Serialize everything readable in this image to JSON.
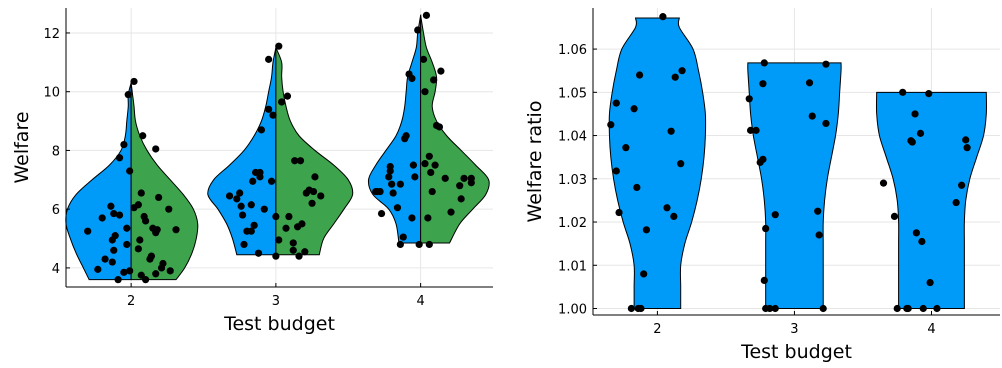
{
  "chart_data": [
    {
      "type": "violin",
      "split": true,
      "xlabel": "Test budget",
      "ylabel": "Welfare",
      "categories": [
        "2",
        "3",
        "4"
      ],
      "ylim": [
        3.35,
        12.85
      ],
      "yticks": [
        4,
        6,
        8,
        10,
        12
      ],
      "grid": true,
      "colors": {
        "left": "#009af9",
        "right": "#3da44d",
        "points": "#000000"
      },
      "violins": [
        {
          "category": "2",
          "y": [
            3.6,
            4.0,
            4.5,
            5.0,
            5.5,
            6.0,
            6.5,
            7.0,
            7.5,
            8.0,
            8.5,
            9.0,
            9.5,
            9.9,
            10.3
          ],
          "left": [
            0.29,
            0.33,
            0.38,
            0.42,
            0.45,
            0.44,
            0.38,
            0.27,
            0.15,
            0.07,
            0.04,
            0.03,
            0.02,
            0.02,
            0.0
          ],
          "right": [
            0.31,
            0.37,
            0.42,
            0.45,
            0.46,
            0.43,
            0.36,
            0.27,
            0.18,
            0.11,
            0.06,
            0.03,
            0.02,
            0.01,
            0.0
          ],
          "points": [
            [
              1.7,
              5.25
            ],
            [
              1.77,
              3.95
            ],
            [
              1.8,
              5.7
            ],
            [
              1.82,
              4.3
            ],
            [
              1.86,
              6.1
            ],
            [
              1.87,
              4.95
            ],
            [
              1.87,
              4.2
            ],
            [
              1.88,
              5.85
            ],
            [
              1.88,
              4.6
            ],
            [
              1.89,
              5.1
            ],
            [
              1.91,
              3.6
            ],
            [
              1.92,
              7.75
            ],
            [
              1.92,
              5.8
            ],
            [
              1.95,
              3.85
            ],
            [
              1.95,
              8.2
            ],
            [
              1.97,
              5.35
            ],
            [
              1.97,
              4.8
            ],
            [
              1.98,
              9.9
            ],
            [
              1.99,
              3.9
            ],
            [
              1.99,
              7.3
            ],
            [
              2.02,
              10.35
            ],
            [
              2.05,
              4.65
            ],
            [
              2.05,
              6.15
            ],
            [
              2.06,
              4.95
            ],
            [
              2.07,
              6.55
            ],
            [
              2.07,
              3.75
            ],
            [
              2.08,
              8.5
            ],
            [
              2.09,
              5.75
            ],
            [
              2.1,
              5.6
            ],
            [
              2.1,
              3.6
            ],
            [
              2.13,
              4.3
            ],
            [
              2.14,
              4.4
            ],
            [
              2.15,
              5.35
            ],
            [
              2.17,
              3.8
            ],
            [
              2.17,
              5.2
            ],
            [
              2.18,
              5.3
            ],
            [
              2.19,
              6.4
            ],
            [
              2.21,
              4.0
            ],
            [
              2.22,
              4.15
            ],
            [
              2.26,
              6.0
            ],
            [
              2.27,
              3.9
            ],
            [
              2.31,
              5.3
            ],
            [
              2.17,
              8.05
            ],
            [
              2.02,
              6.05
            ]
          ]
        },
        {
          "category": "3",
          "y": [
            4.45,
            5.0,
            5.5,
            6.0,
            6.5,
            7.0,
            7.5,
            8.0,
            8.5,
            9.0,
            9.5,
            10.0,
            10.5,
            11.0,
            11.5
          ],
          "left": [
            0.27,
            0.3,
            0.34,
            0.4,
            0.47,
            0.43,
            0.32,
            0.22,
            0.15,
            0.1,
            0.07,
            0.05,
            0.03,
            0.02,
            0.0
          ],
          "right": [
            0.3,
            0.33,
            0.4,
            0.47,
            0.53,
            0.5,
            0.4,
            0.27,
            0.16,
            0.1,
            0.07,
            0.05,
            0.04,
            0.04,
            0.0
          ],
          "points": [
            [
              2.68,
              6.45
            ],
            [
              2.73,
              6.35
            ],
            [
              2.75,
              6.55
            ],
            [
              2.76,
              6.1
            ],
            [
              2.77,
              5.8
            ],
            [
              2.78,
              4.8
            ],
            [
              2.8,
              5.25
            ],
            [
              2.83,
              5.25
            ],
            [
              2.83,
              6.15
            ],
            [
              2.84,
              6.95
            ],
            [
              2.85,
              5.45
            ],
            [
              2.86,
              7.25
            ],
            [
              2.88,
              4.5
            ],
            [
              2.89,
              7.1
            ],
            [
              2.89,
              7.25
            ],
            [
              2.9,
              8.7
            ],
            [
              2.92,
              6.0
            ],
            [
              2.95,
              9.4
            ],
            [
              2.95,
              11.1
            ],
            [
              2.97,
              6.95
            ],
            [
              2.98,
              9.2
            ],
            [
              3.0,
              4.4
            ],
            [
              3.0,
              5.75
            ],
            [
              3.02,
              11.55
            ],
            [
              3.02,
              4.95
            ],
            [
              3.04,
              9.65
            ],
            [
              3.08,
              9.85
            ],
            [
              3.09,
              5.75
            ],
            [
              3.12,
              4.6
            ],
            [
              3.12,
              4.85
            ],
            [
              3.13,
              7.65
            ],
            [
              3.15,
              5.4
            ],
            [
              3.16,
              4.4
            ],
            [
              3.17,
              7.65
            ],
            [
              3.18,
              5.5
            ],
            [
              3.2,
              4.55
            ],
            [
              3.21,
              6.55
            ],
            [
              3.23,
              6.65
            ],
            [
              3.26,
              6.6
            ],
            [
              3.27,
              7.1
            ],
            [
              3.31,
              6.45
            ],
            [
              3.07,
              5.35
            ],
            [
              3.25,
              6.2
            ]
          ]
        },
        {
          "category": "4",
          "y": [
            4.85,
            5.5,
            6.0,
            6.5,
            7.0,
            7.5,
            8.0,
            8.5,
            9.0,
            9.5,
            10.0,
            10.5,
            11.0,
            11.5,
            12.0,
            12.6
          ],
          "left": [
            0.15,
            0.17,
            0.22,
            0.33,
            0.36,
            0.31,
            0.24,
            0.17,
            0.13,
            0.11,
            0.1,
            0.09,
            0.06,
            0.03,
            0.02,
            0.0
          ],
          "right": [
            0.2,
            0.27,
            0.36,
            0.45,
            0.47,
            0.38,
            0.28,
            0.18,
            0.11,
            0.08,
            0.1,
            0.11,
            0.08,
            0.04,
            0.02,
            0.0
          ],
          "points": [
            [
              3.69,
              6.6
            ],
            [
              3.7,
              6.6
            ],
            [
              3.72,
              6.6
            ],
            [
              3.73,
              5.85
            ],
            [
              3.78,
              7.1
            ],
            [
              3.79,
              7.45
            ],
            [
              3.79,
              7.3
            ],
            [
              3.8,
              6.85
            ],
            [
              3.81,
              6.55
            ],
            [
              3.84,
              6.05
            ],
            [
              3.86,
              4.8
            ],
            [
              3.86,
              6.85
            ],
            [
              3.88,
              5.05
            ],
            [
              3.89,
              8.4
            ],
            [
              3.9,
              8.5
            ],
            [
              3.92,
              10.6
            ],
            [
              3.94,
              10.45
            ],
            [
              3.94,
              5.7
            ],
            [
              3.95,
              7.5
            ],
            [
              3.96,
              7.1
            ],
            [
              3.98,
              12.1
            ],
            [
              3.99,
              4.8
            ],
            [
              4.02,
              11.1
            ],
            [
              4.03,
              10.0
            ],
            [
              4.03,
              7.55
            ],
            [
              4.04,
              12.6
            ],
            [
              4.05,
              5.7
            ],
            [
              4.06,
              7.8
            ],
            [
              4.06,
              4.8
            ],
            [
              4.07,
              7.25
            ],
            [
              4.08,
              6.6
            ],
            [
              4.09,
              10.4
            ],
            [
              4.1,
              7.5
            ],
            [
              4.11,
              8.85
            ],
            [
              4.13,
              8.8
            ],
            [
              4.14,
              10.7
            ],
            [
              4.17,
              7.05
            ],
            [
              4.21,
              5.9
            ],
            [
              4.27,
              6.8
            ],
            [
              4.28,
              6.35
            ],
            [
              4.3,
              7.05
            ],
            [
              4.35,
              6.9
            ],
            [
              4.35,
              7.05
            ]
          ]
        }
      ]
    },
    {
      "type": "violin",
      "split": false,
      "xlabel": "Test budget",
      "ylabel": "Welfare ratio",
      "categories": [
        "2",
        "3",
        "4"
      ],
      "ylim": [
        0.9985,
        1.0695
      ],
      "yticks": [
        1.0,
        1.01,
        1.02,
        1.03,
        1.04,
        1.05,
        1.06
      ],
      "ytick_labels": [
        "1.00",
        "1.01",
        "1.02",
        "1.03",
        "1.04",
        "1.05",
        "1.06"
      ],
      "grid": true,
      "colors": {
        "fill": "#009af9",
        "points": "#000000"
      },
      "violins": [
        {
          "category": "2",
          "y": [
            1.0,
            1.005,
            1.01,
            1.015,
            1.02,
            1.025,
            1.03,
            1.035,
            1.04,
            1.045,
            1.05,
            1.055,
            1.06,
            1.065,
            1.0672
          ],
          "left": [
            0.17,
            0.17,
            0.17,
            0.2,
            0.25,
            0.29,
            0.32,
            0.34,
            0.35,
            0.35,
            0.33,
            0.3,
            0.26,
            0.16,
            0.16
          ],
          "right": [
            0.17,
            0.17,
            0.17,
            0.2,
            0.25,
            0.29,
            0.32,
            0.34,
            0.35,
            0.35,
            0.33,
            0.3,
            0.26,
            0.16,
            0.16
          ],
          "points": [
            [
              1.66,
              1.0425
            ],
            [
              1.7,
              1.0475
            ],
            [
              1.7,
              1.0318
            ],
            [
              1.72,
              1.0222
            ],
            [
              1.77,
              1.0372
            ],
            [
              1.81,
              1.0
            ],
            [
              1.83,
              1.0462
            ],
            [
              1.85,
              1.028
            ],
            [
              1.86,
              1.0
            ],
            [
              1.87,
              1.054
            ],
            [
              1.88,
              1.0
            ],
            [
              1.9,
              1.008
            ],
            [
              1.92,
              1.0182
            ],
            [
              2.04,
              1.0675
            ],
            [
              2.07,
              1.0233
            ],
            [
              2.1,
              1.041
            ],
            [
              2.12,
              1.0213
            ],
            [
              2.13,
              1.0535
            ],
            [
              2.17,
              1.0335
            ],
            [
              2.18,
              1.055
            ]
          ]
        },
        {
          "category": "3",
          "y": [
            1.0,
            1.005,
            1.01,
            1.015,
            1.02,
            1.025,
            1.03,
            1.035,
            1.04,
            1.045,
            1.05,
            1.055,
            1.0568
          ],
          "left": [
            0.21,
            0.21,
            0.21,
            0.21,
            0.21,
            0.22,
            0.24,
            0.27,
            0.3,
            0.32,
            0.33,
            0.34,
            0.34
          ],
          "right": [
            0.21,
            0.21,
            0.21,
            0.21,
            0.21,
            0.22,
            0.24,
            0.27,
            0.3,
            0.32,
            0.33,
            0.34,
            0.34
          ],
          "points": [
            [
              2.67,
              1.0485
            ],
            [
              2.68,
              1.0412
            ],
            [
              2.72,
              1.0412
            ],
            [
              2.75,
              1.0338
            ],
            [
              2.77,
              1.0345
            ],
            [
              2.77,
              1.052
            ],
            [
              2.78,
              1.0568
            ],
            [
              2.78,
              1.0065
            ],
            [
              2.79,
              1.0185
            ],
            [
              2.79,
              1.0
            ],
            [
              2.82,
              1.0
            ],
            [
              2.86,
              1.0217
            ],
            [
              2.86,
              1.0
            ],
            [
              3.11,
              1.0522
            ],
            [
              3.13,
              1.0445
            ],
            [
              3.17,
              1.0225
            ],
            [
              3.18,
              1.017
            ],
            [
              3.21,
              1.0
            ],
            [
              3.23,
              1.0428
            ],
            [
              3.23,
              1.0565
            ]
          ]
        },
        {
          "category": "4",
          "y": [
            1.0,
            1.005,
            1.01,
            1.015,
            1.02,
            1.025,
            1.03,
            1.035,
            1.04,
            1.045,
            1.05
          ],
          "left": [
            0.24,
            0.24,
            0.24,
            0.24,
            0.24,
            0.25,
            0.28,
            0.33,
            0.38,
            0.4,
            0.4
          ],
          "right": [
            0.24,
            0.24,
            0.24,
            0.24,
            0.24,
            0.25,
            0.28,
            0.33,
            0.38,
            0.4,
            0.4
          ],
          "points": [
            [
              3.65,
              1.029
            ],
            [
              3.73,
              1.0213
            ],
            [
              3.75,
              1.0
            ],
            [
              3.79,
              1.05
            ],
            [
              3.82,
              1.0
            ],
            [
              3.83,
              1.0
            ],
            [
              3.85,
              1.0388
            ],
            [
              3.86,
              1.0385
            ],
            [
              3.88,
              1.045
            ],
            [
              3.89,
              1.0175
            ],
            [
              3.92,
              1.0405
            ],
            [
              3.93,
              1.0155
            ],
            [
              3.94,
              1.0
            ],
            [
              3.98,
              1.0497
            ],
            [
              3.99,
              1.006
            ],
            [
              4.04,
              1.0
            ],
            [
              4.18,
              1.0245
            ],
            [
              4.22,
              1.0285
            ],
            [
              4.25,
              1.039
            ],
            [
              4.26,
              1.0372
            ]
          ]
        }
      ]
    }
  ]
}
